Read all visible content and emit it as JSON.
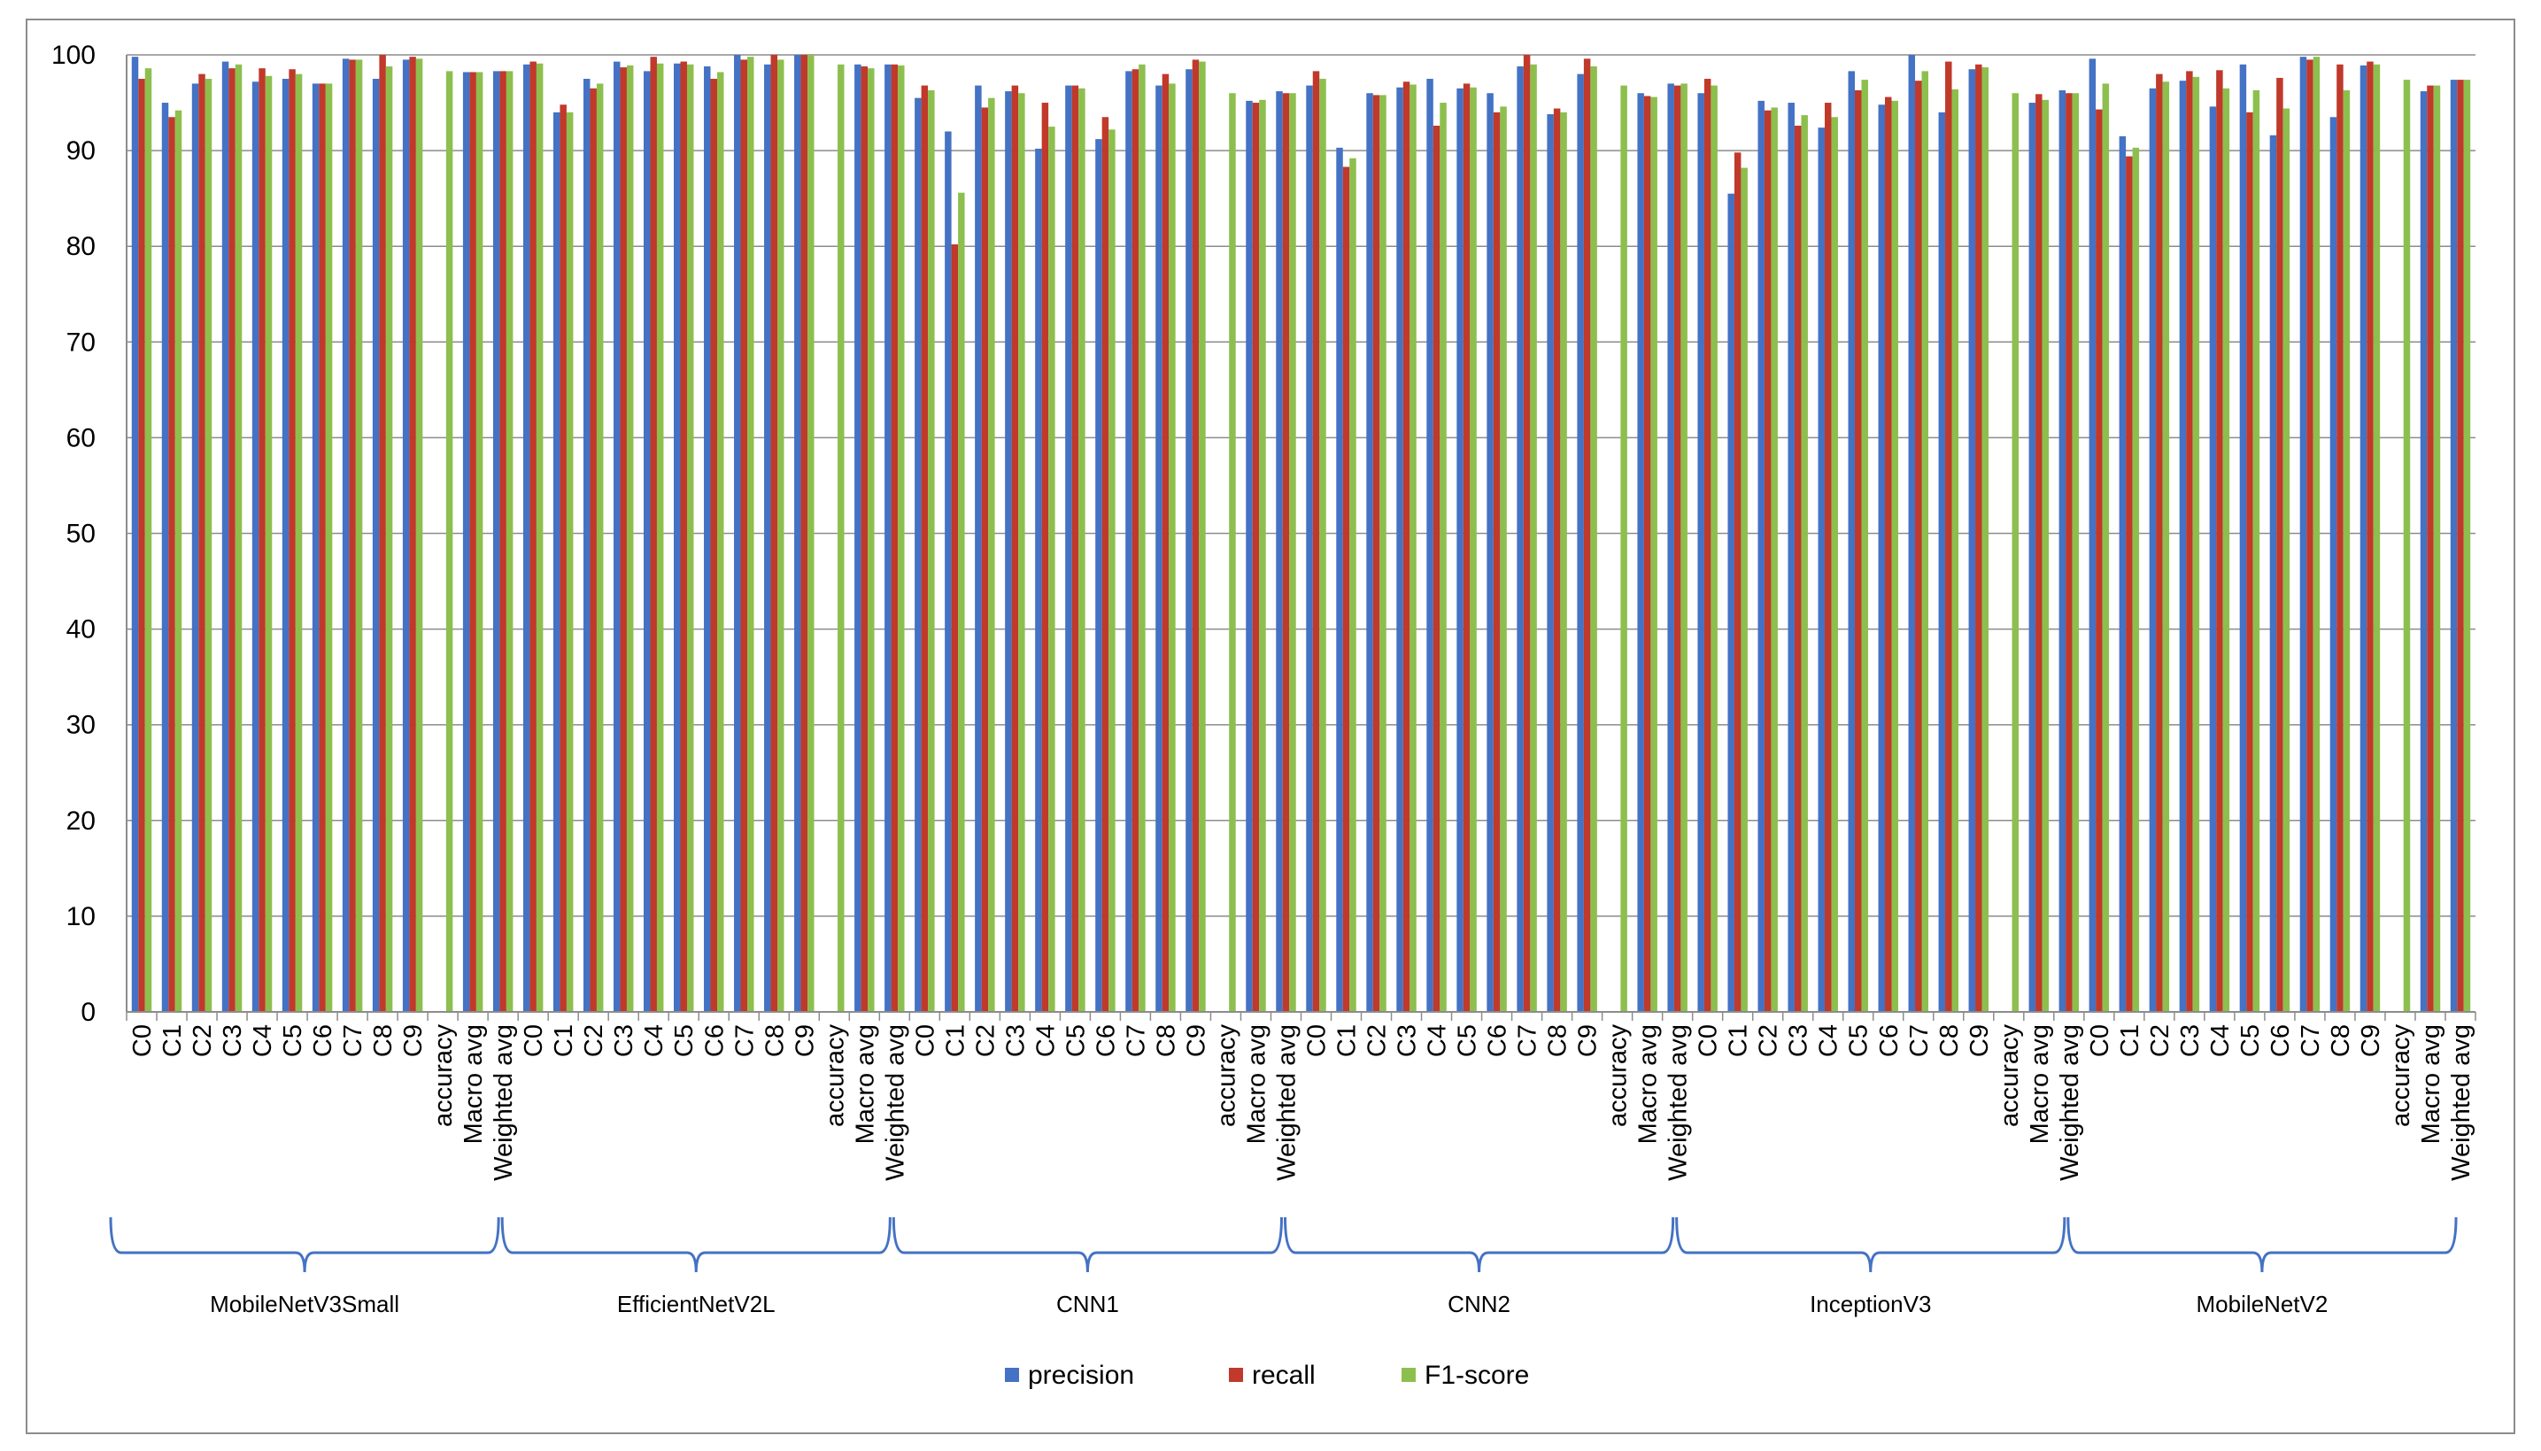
{
  "chart_data": {
    "type": "bar",
    "title": "",
    "xlabel": "",
    "ylabel": "",
    "ylim": [
      0,
      100
    ],
    "yticks": [
      0,
      10,
      20,
      30,
      40,
      50,
      60,
      70,
      80,
      90,
      100
    ],
    "grid": true,
    "legend_position": "bottom",
    "categories": [
      "C0",
      "C1",
      "C2",
      "C3",
      "C4",
      "C5",
      "C6",
      "C7",
      "C8",
      "C9",
      "accuracy",
      "Macro avg",
      "Weighted avg"
    ],
    "series_meta": [
      {
        "name": "precision",
        "color": "#4472C4"
      },
      {
        "name": "recall",
        "color": "#C0392B"
      },
      {
        "name": "F1-score",
        "color": "#8DBF4E"
      }
    ],
    "groups": [
      {
        "name": "MobileNetV3Small",
        "precision": [
          99.8,
          95.0,
          97.0,
          99.3,
          97.2,
          97.5,
          97.0,
          99.6,
          97.5,
          99.5,
          null,
          98.2,
          98.3
        ],
        "recall": [
          97.5,
          93.5,
          98.0,
          98.6,
          98.6,
          98.5,
          97.0,
          99.5,
          100,
          99.8,
          null,
          98.2,
          98.3
        ],
        "f1": [
          98.6,
          94.2,
          97.5,
          99.0,
          97.8,
          98.0,
          97.0,
          99.5,
          98.8,
          99.6,
          98.3,
          98.2,
          98.3
        ]
      },
      {
        "name": "EfficientNetV2L",
        "precision": [
          99.0,
          94.0,
          97.5,
          99.3,
          98.3,
          99.1,
          98.8,
          100,
          99.0,
          100,
          null,
          99.0,
          99.0
        ],
        "recall": [
          99.3,
          94.8,
          96.5,
          98.7,
          99.8,
          99.3,
          97.5,
          99.5,
          100,
          100,
          null,
          98.8,
          99.0
        ],
        "f1": [
          99.1,
          94.0,
          97.0,
          98.9,
          99.1,
          99.0,
          98.2,
          99.8,
          99.5,
          100,
          99.0,
          98.6,
          98.9
        ]
      },
      {
        "name": "CNN1",
        "precision": [
          95.5,
          92.0,
          96.8,
          96.2,
          90.2,
          96.8,
          91.2,
          98.3,
          96.8,
          98.5,
          null,
          95.2,
          96.2
        ],
        "recall": [
          96.8,
          80.2,
          94.5,
          96.8,
          95.0,
          96.8,
          93.5,
          98.5,
          98.0,
          99.5,
          null,
          95.0,
          96.0
        ],
        "f1": [
          96.3,
          85.6,
          95.5,
          96.0,
          92.5,
          96.5,
          92.2,
          99.0,
          97.0,
          99.3,
          96.0,
          95.3,
          96.0
        ]
      },
      {
        "name": "CNN2",
        "precision": [
          96.8,
          90.3,
          96.0,
          96.6,
          97.5,
          96.5,
          96.0,
          98.8,
          93.8,
          98.0,
          null,
          96.0,
          97.0
        ],
        "recall": [
          98.3,
          88.3,
          95.8,
          97.2,
          92.6,
          97.0,
          94.0,
          100,
          94.4,
          99.6,
          null,
          95.7,
          96.8
        ],
        "f1": [
          97.5,
          89.2,
          95.8,
          96.9,
          95.0,
          96.6,
          94.6,
          99.0,
          94.0,
          98.8,
          96.8,
          95.6,
          97.0
        ]
      },
      {
        "name": "InceptionV3",
        "precision": [
          96.0,
          85.5,
          95.2,
          95.0,
          92.4,
          98.3,
          94.8,
          100,
          94.0,
          98.5,
          null,
          95.0,
          96.3
        ],
        "recall": [
          97.5,
          89.8,
          94.2,
          92.6,
          95.0,
          96.3,
          95.6,
          97.3,
          99.3,
          99.0,
          null,
          95.9,
          96.0
        ],
        "f1": [
          96.8,
          88.2,
          94.5,
          93.7,
          93.5,
          97.4,
          95.2,
          98.3,
          96.4,
          98.7,
          96.0,
          95.3,
          96.0
        ]
      },
      {
        "name": "MobileNetV2",
        "precision": [
          99.6,
          91.5,
          96.5,
          97.3,
          94.6,
          99.0,
          91.6,
          99.8,
          93.5,
          98.9,
          null,
          96.2,
          97.4
        ],
        "recall": [
          94.3,
          89.4,
          98.0,
          98.3,
          98.4,
          94.0,
          97.6,
          99.5,
          99.0,
          99.3,
          null,
          96.8,
          97.4
        ],
        "f1": [
          97.0,
          90.3,
          97.2,
          97.7,
          96.5,
          96.3,
          94.4,
          99.8,
          96.3,
          99.0,
          97.4,
          96.8,
          97.4
        ]
      }
    ]
  }
}
